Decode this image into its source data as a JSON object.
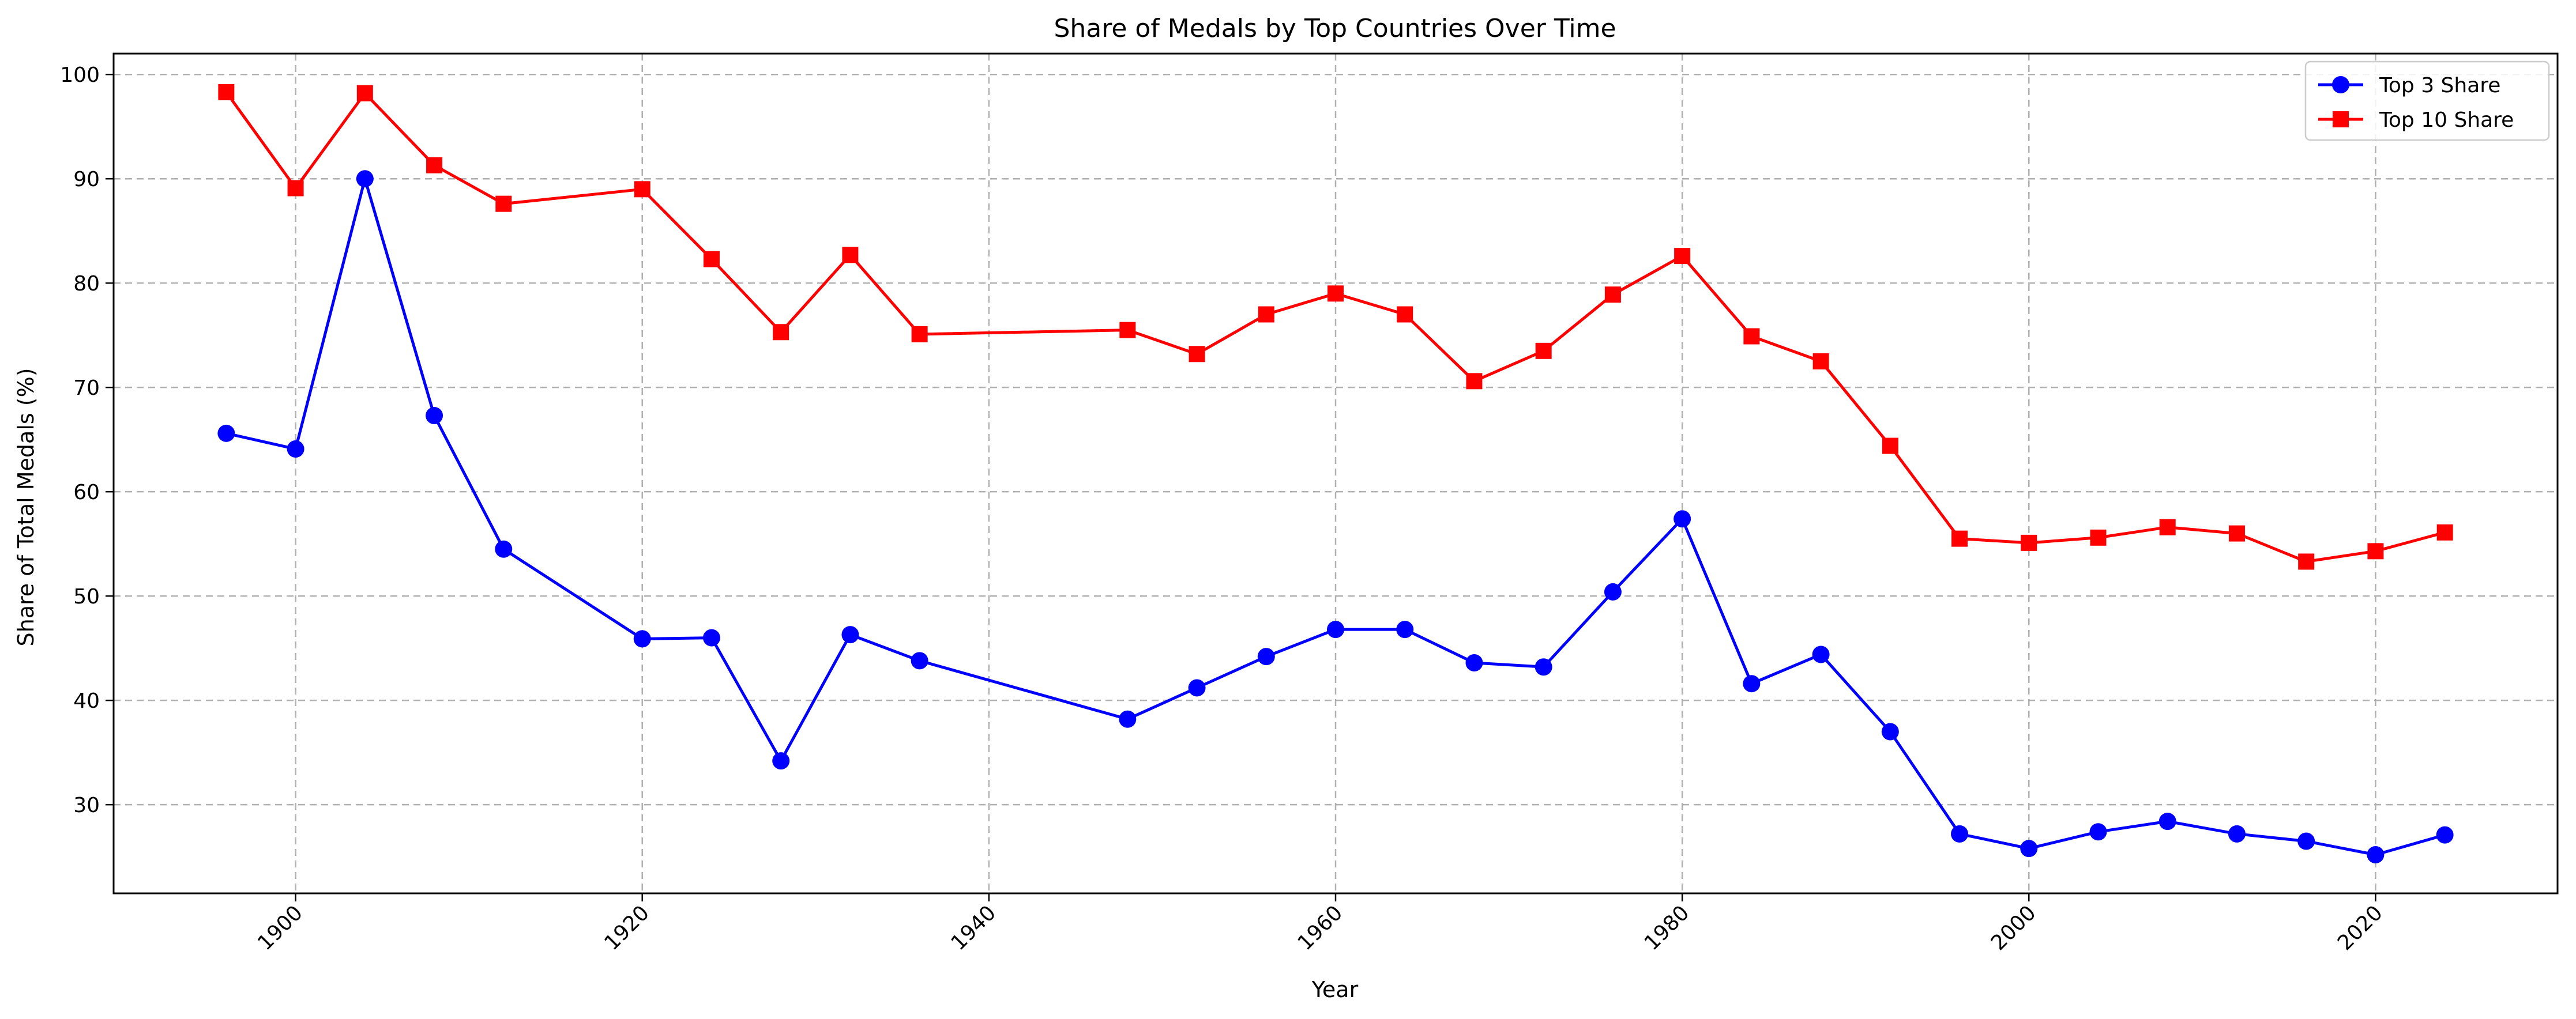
{
  "chart_data": {
    "type": "line",
    "title": "Share of Medals by Top Countries Over Time",
    "xlabel": "Year",
    "ylabel": "Share of Total Medals (%)",
    "xlim": [
      1889.5,
      2030.5
    ],
    "ylim": [
      21.5,
      102
    ],
    "x_ticks": [
      1900,
      1920,
      1940,
      1960,
      1980,
      2000,
      2020
    ],
    "y_ticks": [
      30,
      40,
      50,
      60,
      70,
      80,
      90,
      100
    ],
    "grid": true,
    "legend_position": "upper right",
    "x": [
      1896,
      1900,
      1904,
      1908,
      1912,
      1920,
      1924,
      1928,
      1932,
      1936,
      1948,
      1952,
      1956,
      1960,
      1964,
      1968,
      1972,
      1976,
      1980,
      1984,
      1988,
      1992,
      1996,
      2000,
      2004,
      2008,
      2012,
      2016,
      2020,
      2024
    ],
    "series": [
      {
        "name": "Top 3 Share",
        "color": "#0000ff",
        "marker": "circle",
        "values": [
          65.6,
          64.1,
          90.0,
          67.3,
          54.5,
          45.9,
          46.0,
          34.2,
          46.3,
          43.8,
          38.2,
          41.2,
          44.2,
          46.8,
          46.8,
          43.6,
          43.2,
          50.4,
          57.4,
          41.6,
          44.4,
          37.0,
          27.2,
          25.8,
          27.4,
          28.4,
          27.2,
          26.5,
          25.2,
          27.1
        ]
      },
      {
        "name": "Top 10 Share",
        "color": "#ff0000",
        "marker": "square",
        "values": [
          98.3,
          89.1,
          98.2,
          91.3,
          87.6,
          89.0,
          82.3,
          75.3,
          82.7,
          75.1,
          75.5,
          73.2,
          77.0,
          79.0,
          77.0,
          70.6,
          73.5,
          78.9,
          82.6,
          74.9,
          72.5,
          64.4,
          55.5,
          55.1,
          55.6,
          56.6,
          56.0,
          53.3,
          54.3,
          56.1
        ]
      }
    ]
  }
}
